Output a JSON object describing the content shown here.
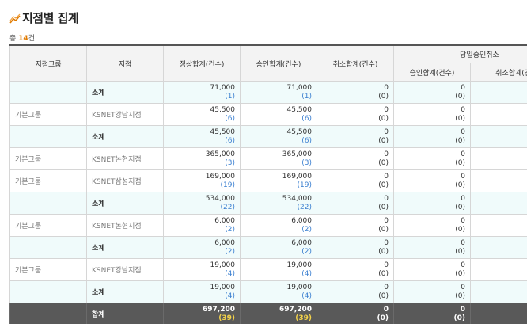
{
  "page": {
    "title": "지점별 집계"
  },
  "summary": {
    "prefix": "총 ",
    "count": "14",
    "suffix": "건"
  },
  "table": {
    "headers": {
      "group": "지점그룹",
      "branch": "지점",
      "normal": "정상합계(건수)",
      "approval": "승인합계(건수)",
      "cancel": "취소합계(건수)",
      "sameday": "당일승인취소",
      "sameday_approval": "승인합계(건수)",
      "sameday_cancel": "취소합계(건수)"
    },
    "rows": [
      {
        "group": "",
        "branch": "소계",
        "normal_amt": "71,000",
        "normal_cnt": "(1)",
        "appr_amt": "71,000",
        "appr_cnt": "(1)",
        "cancel_amt": "0",
        "cancel_cnt": "(0)",
        "sd_appr_amt": "0",
        "sd_appr_cnt": "(0)",
        "sd_cancel_amt": "0",
        "sd_cancel_cnt": "(0)"
      },
      {
        "group": "기본그룹",
        "branch": "KSNET강남지점",
        "normal_amt": "45,500",
        "normal_cnt": "(6)",
        "appr_amt": "45,500",
        "appr_cnt": "(6)",
        "cancel_amt": "0",
        "cancel_cnt": "(0)",
        "sd_appr_amt": "0",
        "sd_appr_cnt": "(0)",
        "sd_cancel_amt": "0",
        "sd_cancel_cnt": "(0)"
      },
      {
        "group": "",
        "branch": "소계",
        "normal_amt": "45,500",
        "normal_cnt": "(6)",
        "appr_amt": "45,500",
        "appr_cnt": "(6)",
        "cancel_amt": "0",
        "cancel_cnt": "(0)",
        "sd_appr_amt": "0",
        "sd_appr_cnt": "(0)",
        "sd_cancel_amt": "0",
        "sd_cancel_cnt": "(0)"
      },
      {
        "group": "기본그룹",
        "branch": "KSNET논현지점",
        "normal_amt": "365,000",
        "normal_cnt": "(3)",
        "appr_amt": "365,000",
        "appr_cnt": "(3)",
        "cancel_amt": "0",
        "cancel_cnt": "(0)",
        "sd_appr_amt": "0",
        "sd_appr_cnt": "(0)",
        "sd_cancel_amt": "0",
        "sd_cancel_cnt": "(0)"
      },
      {
        "group": "기본그룹",
        "branch": "KSNET삼성지점",
        "normal_amt": "169,000",
        "normal_cnt": "(19)",
        "appr_amt": "169,000",
        "appr_cnt": "(19)",
        "cancel_amt": "0",
        "cancel_cnt": "(0)",
        "sd_appr_amt": "0",
        "sd_appr_cnt": "(0)",
        "sd_cancel_amt": "0",
        "sd_cancel_cnt": "(0)"
      },
      {
        "group": "",
        "branch": "소계",
        "normal_amt": "534,000",
        "normal_cnt": "(22)",
        "appr_amt": "534,000",
        "appr_cnt": "(22)",
        "cancel_amt": "0",
        "cancel_cnt": "(0)",
        "sd_appr_amt": "0",
        "sd_appr_cnt": "(0)",
        "sd_cancel_amt": "0",
        "sd_cancel_cnt": "(0)"
      },
      {
        "group": "기본그룹",
        "branch": "KSNET논현지점",
        "normal_amt": "6,000",
        "normal_cnt": "(2)",
        "appr_amt": "6,000",
        "appr_cnt": "(2)",
        "cancel_amt": "0",
        "cancel_cnt": "(0)",
        "sd_appr_amt": "0",
        "sd_appr_cnt": "(0)",
        "sd_cancel_amt": "0",
        "sd_cancel_cnt": "(0)"
      },
      {
        "group": "",
        "branch": "소계",
        "normal_amt": "6,000",
        "normal_cnt": "(2)",
        "appr_amt": "6,000",
        "appr_cnt": "(2)",
        "cancel_amt": "0",
        "cancel_cnt": "(0)",
        "sd_appr_amt": "0",
        "sd_appr_cnt": "(0)",
        "sd_cancel_amt": "0",
        "sd_cancel_cnt": "(0)"
      },
      {
        "group": "기본그룹",
        "branch": "KSNET강남지점",
        "normal_amt": "19,000",
        "normal_cnt": "(4)",
        "appr_amt": "19,000",
        "appr_cnt": "(4)",
        "cancel_amt": "0",
        "cancel_cnt": "(0)",
        "sd_appr_amt": "0",
        "sd_appr_cnt": "(0)",
        "sd_cancel_amt": "0",
        "sd_cancel_cnt": "(0)"
      },
      {
        "group": "",
        "branch": "소계",
        "normal_amt": "19,000",
        "normal_cnt": "(4)",
        "appr_amt": "19,000",
        "appr_cnt": "(4)",
        "cancel_amt": "0",
        "cancel_cnt": "(0)",
        "sd_appr_amt": "0",
        "sd_appr_cnt": "(0)",
        "sd_cancel_amt": "0",
        "sd_cancel_cnt": "(0)"
      }
    ],
    "total": {
      "label": "합계",
      "normal_amt": "697,200",
      "normal_cnt": "(39)",
      "appr_amt": "697,200",
      "appr_cnt": "(39)",
      "cancel_amt": "0",
      "cancel_cnt": "(0)",
      "sd_appr_amt": "0",
      "sd_appr_cnt": "(0)",
      "sd_cancel_amt": "0",
      "sd_cancel_cnt": "(0)"
    }
  },
  "colors": {
    "accent_count": "#e07a00",
    "count_link": "#3a7fd0",
    "subtotal_bg": "#f0fbfb",
    "total_bg": "#595959",
    "total_count": "#f3d24a"
  },
  "icons": {
    "title": "chart-line-icon"
  }
}
